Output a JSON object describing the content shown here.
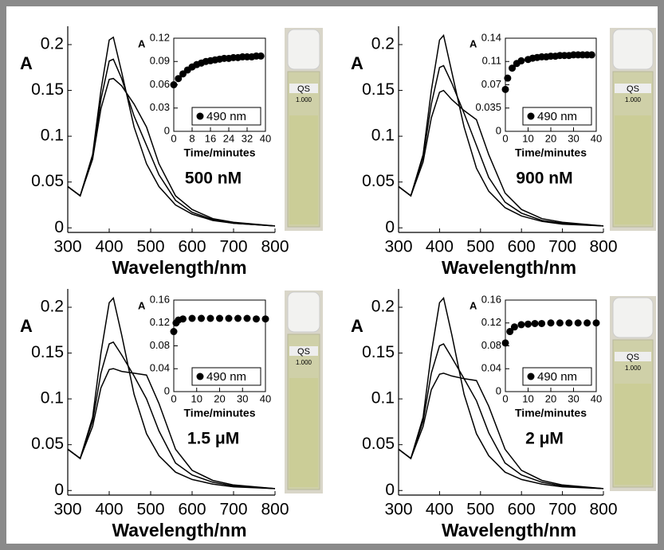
{
  "photo_labels": {
    "brand": "QS",
    "volume": "1.000"
  },
  "chart_data": [
    {
      "type": "line",
      "ylabel": "A",
      "xlabel": "Wavelength/nm",
      "annotation": "500 nM",
      "xlim": [
        300,
        800
      ],
      "ylim": [
        -0.005,
        0.22
      ],
      "xticks": [
        300,
        400,
        500,
        600,
        700,
        800
      ],
      "yticks": [
        0,
        0.05,
        0.1,
        0.15,
        0.2
      ],
      "x": [
        300,
        330,
        360,
        380,
        400,
        410,
        430,
        460,
        490,
        520,
        560,
        600,
        650,
        700,
        800
      ],
      "series": [
        {
          "color": "#000000",
          "values": [
            0.045,
            0.035,
            0.08,
            0.15,
            0.205,
            0.208,
            0.17,
            0.11,
            0.07,
            0.045,
            0.025,
            0.015,
            0.008,
            0.005,
            0.002
          ]
        },
        {
          "color": "#000000",
          "values": [
            0.045,
            0.035,
            0.078,
            0.14,
            0.182,
            0.184,
            0.163,
            0.122,
            0.09,
            0.058,
            0.03,
            0.017,
            0.009,
            0.005,
            0.002
          ]
        },
        {
          "color": "#000000",
          "values": [
            0.045,
            0.035,
            0.075,
            0.13,
            0.162,
            0.163,
            0.155,
            0.135,
            0.11,
            0.07,
            0.035,
            0.02,
            0.01,
            0.006,
            0.002
          ]
        }
      ]
    },
    {
      "type": "line",
      "ylabel": "A",
      "xlabel": "Wavelength/nm",
      "annotation": "900 nM",
      "xlim": [
        300,
        800
      ],
      "ylim": [
        -0.005,
        0.22
      ],
      "xticks": [
        300,
        400,
        500,
        600,
        700,
        800
      ],
      "yticks": [
        0,
        0.05,
        0.1,
        0.15,
        0.2
      ],
      "x": [
        300,
        330,
        360,
        380,
        400,
        410,
        430,
        460,
        490,
        520,
        560,
        600,
        650,
        700,
        800
      ],
      "series": [
        {
          "color": "#000000",
          "values": [
            0.045,
            0.035,
            0.08,
            0.15,
            0.205,
            0.21,
            0.17,
            0.11,
            0.065,
            0.04,
            0.022,
            0.013,
            0.007,
            0.004,
            0.002
          ]
        },
        {
          "color": "#000000",
          "values": [
            0.045,
            0.035,
            0.077,
            0.135,
            0.175,
            0.177,
            0.158,
            0.125,
            0.09,
            0.055,
            0.028,
            0.016,
            0.008,
            0.005,
            0.002
          ]
        },
        {
          "color": "#000000",
          "values": [
            0.045,
            0.035,
            0.072,
            0.12,
            0.148,
            0.15,
            0.14,
            0.128,
            0.118,
            0.08,
            0.038,
            0.02,
            0.01,
            0.006,
            0.002
          ]
        }
      ]
    },
    {
      "type": "line",
      "ylabel": "A",
      "xlabel": "Wavelength/nm",
      "annotation": "1.5 μM",
      "xlim": [
        300,
        800
      ],
      "ylim": [
        -0.005,
        0.22
      ],
      "xticks": [
        300,
        400,
        500,
        600,
        700,
        800
      ],
      "yticks": [
        0,
        0.05,
        0.1,
        0.15,
        0.2
      ],
      "x": [
        300,
        330,
        360,
        380,
        400,
        410,
        430,
        460,
        490,
        520,
        560,
        600,
        650,
        700,
        800
      ],
      "series": [
        {
          "color": "#000000",
          "values": [
            0.045,
            0.035,
            0.08,
            0.15,
            0.205,
            0.21,
            0.17,
            0.105,
            0.062,
            0.038,
            0.02,
            0.012,
            0.007,
            0.004,
            0.002
          ]
        },
        {
          "color": "#000000",
          "values": [
            0.045,
            0.035,
            0.076,
            0.128,
            0.16,
            0.162,
            0.148,
            0.125,
            0.1,
            0.065,
            0.03,
            0.017,
            0.009,
            0.005,
            0.002
          ]
        },
        {
          "color": "#000000",
          "values": [
            0.045,
            0.035,
            0.07,
            0.112,
            0.132,
            0.133,
            0.13,
            0.128,
            0.126,
            0.095,
            0.045,
            0.022,
            0.011,
            0.006,
            0.002
          ]
        }
      ]
    },
    {
      "type": "line",
      "ylabel": "A",
      "xlabel": "Wavelength/nm",
      "annotation": "2 μM",
      "xlim": [
        300,
        800
      ],
      "ylim": [
        -0.005,
        0.22
      ],
      "xticks": [
        300,
        400,
        500,
        600,
        700,
        800
      ],
      "yticks": [
        0,
        0.05,
        0.1,
        0.15,
        0.2
      ],
      "x": [
        300,
        330,
        360,
        380,
        400,
        410,
        430,
        460,
        490,
        520,
        560,
        600,
        650,
        700,
        800
      ],
      "series": [
        {
          "color": "#000000",
          "values": [
            0.045,
            0.035,
            0.08,
            0.15,
            0.205,
            0.21,
            0.17,
            0.105,
            0.062,
            0.038,
            0.02,
            0.012,
            0.007,
            0.004,
            0.002
          ]
        },
        {
          "color": "#000000",
          "values": [
            0.045,
            0.035,
            0.076,
            0.128,
            0.158,
            0.16,
            0.145,
            0.122,
            0.098,
            0.063,
            0.03,
            0.017,
            0.009,
            0.005,
            0.002
          ]
        },
        {
          "color": "#000000",
          "values": [
            0.045,
            0.035,
            0.07,
            0.11,
            0.127,
            0.128,
            0.125,
            0.122,
            0.12,
            0.092,
            0.045,
            0.022,
            0.011,
            0.006,
            0.002
          ]
        }
      ]
    },
    {
      "type": "scatter",
      "ylabel": "A",
      "xlabel": "Time/minutes",
      "legend": "lower right",
      "xlim": [
        0,
        40
      ],
      "ylim": [
        0,
        0.12
      ],
      "xticks": [
        0,
        8,
        16,
        24,
        32,
        40
      ],
      "yticks": [
        0,
        0.03,
        0.06,
        0.09,
        0.12
      ],
      "x": [
        0,
        2,
        4,
        6,
        8,
        10,
        12,
        14,
        16,
        18,
        20,
        22,
        24,
        26,
        28,
        30,
        32,
        34,
        36,
        38
      ],
      "series": [
        {
          "name": "490 nm",
          "color": "#000000",
          "values": [
            0.06,
            0.068,
            0.074,
            0.079,
            0.083,
            0.086,
            0.088,
            0.09,
            0.091,
            0.092,
            0.093,
            0.094,
            0.094,
            0.095,
            0.095,
            0.096,
            0.096,
            0.096,
            0.097,
            0.097
          ]
        }
      ]
    },
    {
      "type": "scatter",
      "ylabel": "A",
      "xlabel": "Time/minutes",
      "legend": "lower right",
      "xlim": [
        0,
        40
      ],
      "ylim": [
        0,
        0.14
      ],
      "xticks": [
        0,
        10,
        20,
        30,
        40
      ],
      "yticks": [
        0,
        0.035,
        0.07,
        {
          "value": 0.105,
          "label": "0.11"
        },
        0.14
      ],
      "x": [
        0,
        1,
        3,
        5,
        7,
        10,
        12,
        14,
        16,
        18,
        20,
        22,
        24,
        26,
        28,
        30,
        32,
        34,
        36,
        38
      ],
      "series": [
        {
          "name": "490 nm",
          "color": "#000000",
          "values": [
            0.063,
            0.08,
            0.095,
            0.102,
            0.106,
            0.108,
            0.11,
            0.111,
            0.112,
            0.112,
            0.113,
            0.113,
            0.114,
            0.114,
            0.114,
            0.115,
            0.115,
            0.115,
            0.115,
            0.115
          ]
        }
      ]
    },
    {
      "type": "scatter",
      "ylabel": "A",
      "xlabel": "Time/minutes",
      "legend": "lower right",
      "xlim": [
        0,
        40
      ],
      "ylim": [
        0,
        0.16
      ],
      "xticks": [
        0,
        10,
        20,
        30,
        40
      ],
      "yticks": [
        0,
        0.04,
        0.08,
        0.12,
        0.16
      ],
      "x": [
        0,
        1,
        2,
        4,
        8,
        12,
        16,
        20,
        24,
        28,
        32,
        36,
        40
      ],
      "series": [
        {
          "name": "490 nm",
          "color": "#000000",
          "values": [
            0.105,
            0.12,
            0.125,
            0.127,
            0.128,
            0.128,
            0.128,
            0.128,
            0.128,
            0.128,
            0.128,
            0.127,
            0.127
          ]
        }
      ]
    },
    {
      "type": "scatter",
      "ylabel": "A",
      "xlabel": "Time/minutes",
      "legend": "lower right",
      "xlim": [
        0,
        40
      ],
      "ylim": [
        0,
        0.16
      ],
      "xticks": [
        0,
        10,
        20,
        30,
        40
      ],
      "yticks": [
        0,
        0.04,
        0.08,
        0.12,
        0.16
      ],
      "x": [
        0,
        2,
        4,
        7,
        10,
        13,
        16,
        20,
        24,
        28,
        32,
        36,
        40
      ],
      "series": [
        {
          "name": "490 nm",
          "color": "#000000",
          "values": [
            0.085,
            0.105,
            0.113,
            0.117,
            0.118,
            0.119,
            0.119,
            0.12,
            0.12,
            0.12,
            0.12,
            0.12,
            0.12
          ]
        }
      ]
    }
  ]
}
